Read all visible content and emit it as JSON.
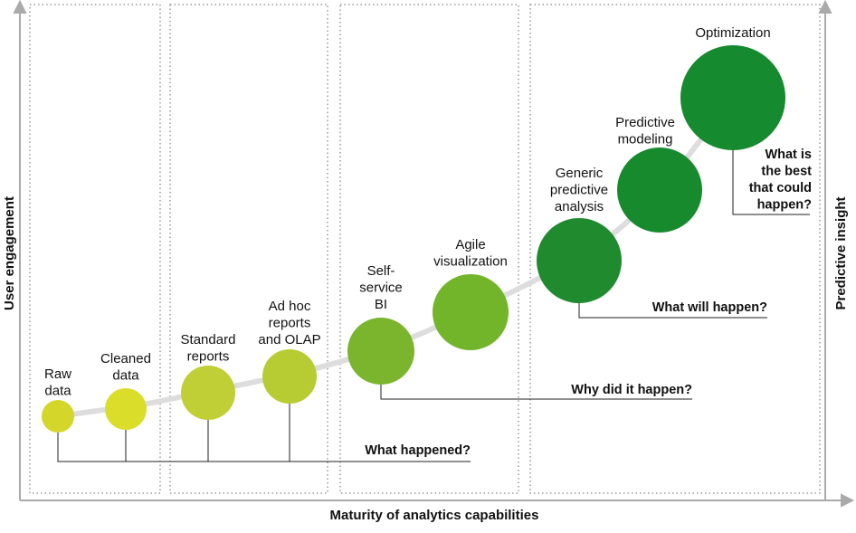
{
  "axes": {
    "x_label": "Maturity of analytics capabilities",
    "y_label": "User engagement",
    "y2_label": "Predictive insight"
  },
  "nodes": [
    {
      "label": [
        "Raw",
        "data"
      ]
    },
    {
      "label": [
        "Cleaned",
        "data"
      ]
    },
    {
      "label": [
        "Standard",
        "reports"
      ]
    },
    {
      "label": [
        "Ad hoc",
        "reports",
        "and OLAP"
      ]
    },
    {
      "label": [
        "Self-",
        "service",
        "BI"
      ]
    },
    {
      "label": [
        "Agile",
        "visualization"
      ]
    },
    {
      "label": [
        "Generic",
        "predictive",
        "analysis"
      ]
    },
    {
      "label": [
        "Predictive",
        "modeling"
      ]
    },
    {
      "label": [
        "Optimization"
      ]
    }
  ],
  "questions": [
    {
      "label": [
        "What happened?"
      ]
    },
    {
      "label": [
        "Why did it happen?"
      ]
    },
    {
      "label": [
        "What will happen?"
      ]
    },
    {
      "label": [
        "What is",
        "the best",
        "that could",
        "happen?"
      ]
    }
  ]
}
